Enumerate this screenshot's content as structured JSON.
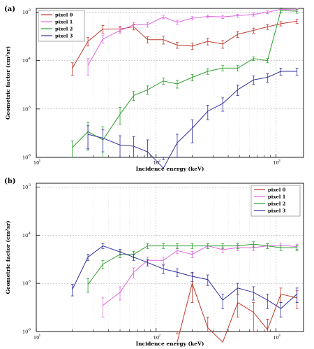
{
  "chart_data": [
    {
      "type": "line",
      "panel_label": "(a)",
      "xlabel": "Incidence energy (keV)",
      "ylabel": "Geometric factor (cm²sr)",
      "xscale": "log",
      "yscale": "log",
      "xlim": [
        10,
        1700
      ],
      "ylim": [
        1e-06,
        0.0012
      ],
      "grid": true,
      "legend_position": "top-left",
      "x_ticks": [
        10,
        100,
        1000
      ],
      "y_ticks": [
        1e-06,
        1e-05,
        0.0001,
        0.001
      ],
      "series": [
        {
          "name": "pixel 0",
          "color": "#c0392b",
          "x": [
            20,
            27,
            36,
            50,
            65,
            85,
            115,
            150,
            200,
            270,
            360,
            480,
            650,
            850,
            1100,
            1500
          ],
          "y": [
            7e-05,
            0.00025,
            0.00045,
            0.00045,
            0.0005,
            0.00027,
            0.00027,
            0.00021,
            0.0002,
            0.00025,
            0.00022,
            0.00035,
            0.00042,
            0.0005,
            0.00058,
            0.00065
          ],
          "err": [
            2e-05,
            5e-05,
            8e-05,
            6e-05,
            7e-05,
            4e-05,
            5e-05,
            3e-05,
            3e-05,
            4e-05,
            4e-05,
            5e-05,
            5e-05,
            6e-05,
            6e-05,
            6e-05
          ]
        },
        {
          "name": "pixel 1",
          "color": "#e066e0",
          "x": [
            27,
            36,
            50,
            65,
            85,
            115,
            150,
            200,
            270,
            360,
            480,
            650,
            850,
            1100,
            1500
          ],
          "y": [
            8e-05,
            0.00028,
            0.00042,
            0.00055,
            0.00055,
            0.0008,
            0.00062,
            0.00075,
            0.00082,
            0.0008,
            0.00085,
            0.0009,
            0.001,
            0.00115,
            0.00112
          ],
          "err": [
            3e-05,
            5e-05,
            6e-05,
            6e-05,
            6e-05,
            7e-05,
            6e-05,
            6e-05,
            6e-05,
            6e-05,
            6e-05,
            7e-05,
            7e-05,
            8e-05,
            8e-05
          ]
        },
        {
          "name": "pixel 2",
          "color": "#2ca02c",
          "x": [
            20,
            27,
            36,
            50,
            65,
            85,
            115,
            150,
            200,
            270,
            360,
            480,
            650,
            850,
            1100,
            1500
          ],
          "y": [
            1.6e-06,
            3.4e-06,
            2.3e-06,
            7.8e-06,
            1.9e-05,
            2.5e-05,
            3.8e-05,
            3.3e-05,
            4.5e-05,
            6e-05,
            7e-05,
            7e-05,
            0.00011,
            0.0001,
            0.00108,
            0.00105
          ],
          "err": [
            6e-07,
            2e-06,
            2e-06,
            3e-06,
            4e-06,
            5e-06,
            6e-06,
            6e-06,
            7e-06,
            8e-06,
            9e-06,
            9e-06,
            1e-05,
            1e-05,
            0.0001,
            0.0001
          ]
        },
        {
          "name": "pixel 3",
          "color": "#2f2f9f",
          "x": [
            27,
            36,
            50,
            65,
            85,
            115,
            150,
            200,
            270,
            360,
            480,
            650,
            850,
            1100,
            1500
          ],
          "y": [
            3e-06,
            2.5e-06,
            1.8e-06,
            1.7e-06,
            1.3e-06,
            6e-07,
            2e-06,
            4e-06,
            9e-06,
            1.3e-05,
            2.5e-05,
            4e-05,
            4.5e-05,
            6e-05,
            6e-05
          ],
          "err": [
            1.5e-06,
            1.2e-06,
            1e-06,
            1e-06,
            1e-06,
            3e-07,
            1e-06,
            2e-06,
            3e-06,
            4e-06,
            6e-06,
            8e-06,
            9e-06,
            1e-05,
            1e-05
          ]
        }
      ]
    },
    {
      "type": "line",
      "panel_label": "(b)",
      "xlabel": "Incidence energy (keV)",
      "ylabel": "Geometric factor (cm²sr)",
      "xscale": "log",
      "yscale": "log",
      "xlim": [
        10,
        1700
      ],
      "ylim": [
        1e-06,
        0.0012
      ],
      "grid": true,
      "legend_position": "top-right",
      "x_ticks": [
        10,
        100,
        1000
      ],
      "y_ticks": [
        1e-06,
        1e-05,
        0.0001,
        0.001
      ],
      "series": [
        {
          "name": "pixel 0",
          "color": "#c0392b",
          "x": [
            150,
            200,
            270,
            360,
            480,
            650,
            850,
            1100,
            1500
          ],
          "y": [
            6e-07,
            1e-05,
            1.2e-06,
            6e-07,
            4e-06,
            2.5e-06,
            1.1e-06,
            6e-06,
            5e-06
          ],
          "err": [
            3e-07,
            6e-06,
            8e-07,
            4e-07,
            2e-06,
            1.5e-06,
            7e-07,
            2e-06,
            2e-06
          ]
        },
        {
          "name": "pixel 1",
          "color": "#e066e0",
          "x": [
            36,
            50,
            65,
            85,
            115,
            150,
            200,
            270,
            360,
            480,
            650,
            850,
            1100,
            1500
          ],
          "y": [
            3.5e-06,
            6.5e-06,
            1.7e-05,
            3e-05,
            3e-05,
            4.8e-05,
            4e-05,
            6e-05,
            5e-05,
            5.5e-05,
            5.5e-05,
            6e-05,
            6.2e-05,
            5.8e-05
          ],
          "err": [
            1.5e-06,
            2e-06,
            4e-06,
            5e-06,
            5e-06,
            6e-06,
            6e-06,
            7e-06,
            7e-06,
            7e-06,
            7e-06,
            7e-06,
            7e-06,
            7e-06
          ]
        },
        {
          "name": "pixel 2",
          "color": "#2ca02c",
          "x": [
            27,
            36,
            50,
            65,
            85,
            115,
            150,
            200,
            270,
            360,
            480,
            650,
            850,
            1100,
            1500
          ],
          "y": [
            9.5e-06,
            2.5e-05,
            4e-05,
            4e-05,
            6e-05,
            6e-05,
            6e-05,
            6e-05,
            6e-05,
            6e-05,
            6e-05,
            6.5e-05,
            6e-05,
            5.5e-05,
            5.5e-05
          ],
          "err": [
            3e-06,
            5e-06,
            6e-06,
            6e-06,
            7e-06,
            7e-06,
            7e-06,
            7e-06,
            7e-06,
            7e-06,
            7e-06,
            8e-06,
            7e-06,
            7e-06,
            7e-06
          ]
        },
        {
          "name": "pixel 3",
          "color": "#2f2f9f",
          "x": [
            20,
            27,
            36,
            50,
            65,
            85,
            115,
            150,
            200,
            270,
            360,
            480,
            650,
            850,
            1100,
            1500
          ],
          "y": [
            7.5e-06,
            3.5e-05,
            6e-05,
            4.5e-05,
            3.5e-05,
            2.7e-05,
            2e-05,
            1.7e-05,
            1.4e-05,
            1.2e-05,
            4.5e-06,
            8e-06,
            6.5e-06,
            4.5e-06,
            3e-06,
            6e-06
          ],
          "err": [
            2e-06,
            5e-06,
            7e-06,
            6e-06,
            5e-06,
            4e-06,
            4e-06,
            3e-06,
            3e-06,
            3e-06,
            1.5e-06,
            2e-06,
            2e-06,
            1.5e-06,
            1e-06,
            2e-06
          ]
        }
      ]
    }
  ]
}
